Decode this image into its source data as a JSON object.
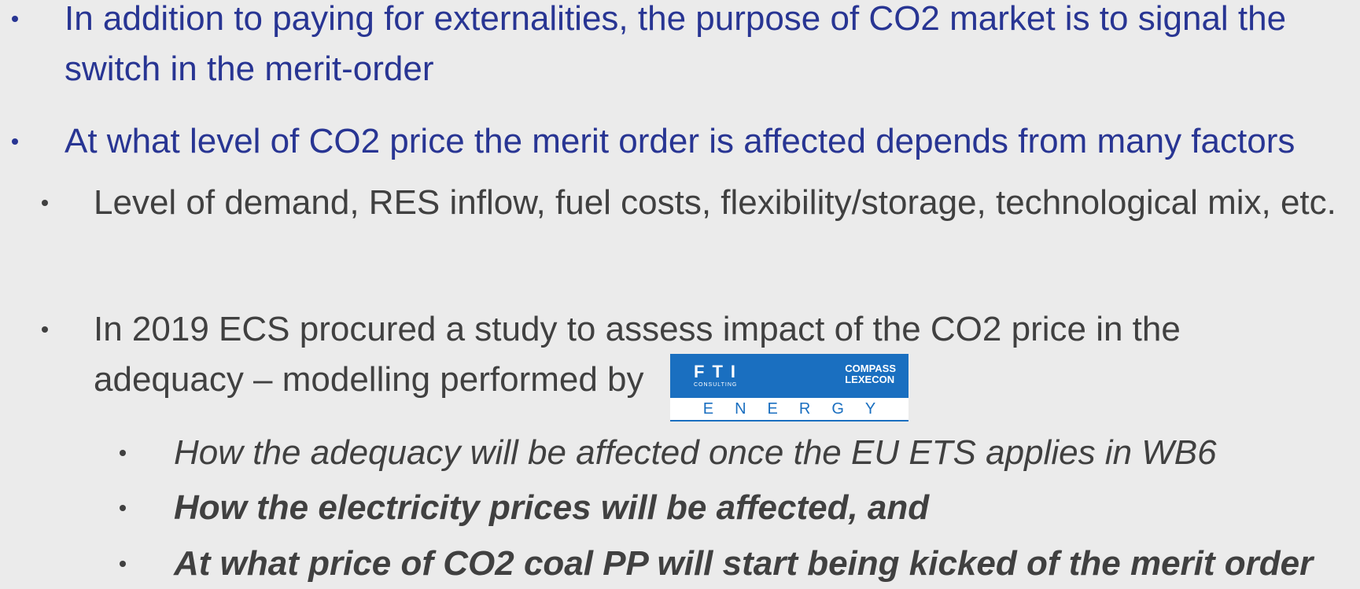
{
  "items": [
    {
      "text": "In addition to paying for externalities, the purpose of CO2 market is to signal the switch in the merit-order"
    },
    {
      "text": "At what level of CO2 price the merit order is affected depends from many factors"
    },
    {
      "text": "Level of demand, RES inflow, fuel costs, flexibility/storage, technological mix, etc."
    },
    {
      "text": "In 2019 ECS procured a study to assess impact of the CO2 price in the adequacy – modelling performed by"
    },
    {
      "text": "How the adequacy will be affected once the EU ETS applies in WB6"
    },
    {
      "text": "How the electricity prices will be affected, and"
    },
    {
      "text": "At what price of CO2 coal PP will start being kicked of the merit order"
    }
  ],
  "logo": {
    "fti": "FTI",
    "consulting": "CONSULTING",
    "compass": "COMPASS",
    "lexecon": "LEXECON",
    "energy": "ENERGY"
  }
}
